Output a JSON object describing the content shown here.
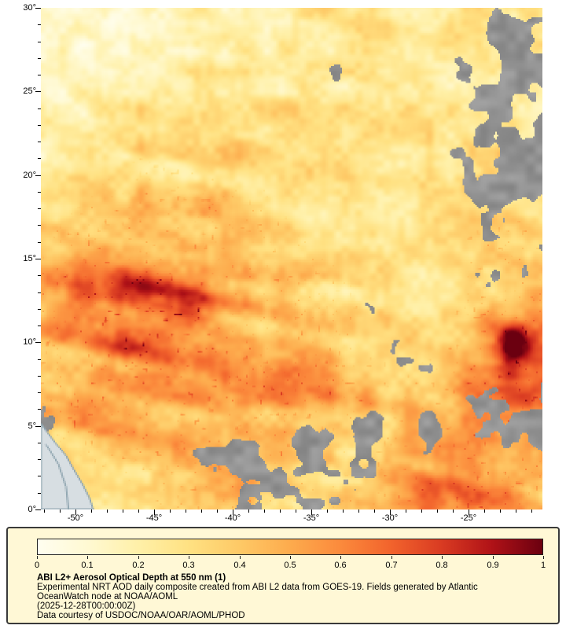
{
  "figure": {
    "background_color": "#FFFFFF"
  },
  "axes": {
    "lat_tick_labels": [
      "30°",
      "25°",
      "20°",
      "15°",
      "10°",
      "5°",
      "0°"
    ],
    "lon_tick_labels": [
      "-50°",
      "-45°",
      "-40°",
      "-35°",
      "-30°",
      "-25°"
    ]
  },
  "legend": {
    "background_color": "#FFF8D6",
    "border_color": "#3A3A3A",
    "colorbar_tick_labels": [
      "0",
      "0.1",
      "0.2",
      "0.3",
      "0.4",
      "0.5",
      "0.6",
      "0.7",
      "0.8",
      "0.9",
      "1"
    ],
    "title": "ABI L2+ Aerosol Optical Depth at 550 nm (1)",
    "description_line1": "Experimental NRT AOD daily composite created from ABI L2 data from GOES-19. Fields generated by Atlantic",
    "description_line2": "OceanWatch node at NOAA/AOML",
    "timestamp": "(2025-12-28T00:00:00Z)",
    "credit": "Data courtesy of USDOC/NOAA/OAR/AOML/PHOD"
  },
  "chart_data": {
    "type": "heatmap",
    "title": "ABI L2+ Aerosol Optical Depth at 550 nm (1)",
    "variable": "Aerosol Optical Depth at 550 nm",
    "lon_range": [
      -52.2,
      -20.3
    ],
    "lat_range": [
      0,
      30
    ],
    "lon_ticks": [
      -50,
      -45,
      -40,
      -35,
      -30,
      -25
    ],
    "lat_ticks": [
      0,
      5,
      10,
      15,
      20,
      25,
      30
    ],
    "colorbar": {
      "min": 0,
      "max": 1,
      "ticks": [
        0,
        0.1,
        0.2,
        0.3,
        0.4,
        0.5,
        0.6,
        0.7,
        0.8,
        0.9,
        1
      ]
    },
    "colormap": [
      {
        "value": 0.0,
        "color": "#FFFEF0"
      },
      {
        "value": 0.1,
        "color": "#FFF9D2"
      },
      {
        "value": 0.2,
        "color": "#FFF0A8"
      },
      {
        "value": 0.3,
        "color": "#FFE182"
      },
      {
        "value": 0.4,
        "color": "#FEC966"
      },
      {
        "value": 0.5,
        "color": "#FDAB4D"
      },
      {
        "value": 0.6,
        "color": "#FB8A3C"
      },
      {
        "value": 0.7,
        "color": "#F2632C"
      },
      {
        "value": 0.8,
        "color": "#D93B22"
      },
      {
        "value": 0.9,
        "color": "#B01217"
      },
      {
        "value": 1.0,
        "color": "#6B0010"
      }
    ],
    "cloud_color": "#9A9A9A",
    "land_color": "#D7DEE2",
    "coast_color": "#8FA5B0",
    "grid_order": "rows north(30N) to south(0N), cols west(-52.2) to east(-20.3)",
    "aod_grid": [
      [
        0.13,
        0.13,
        0.14,
        0.16,
        0.18,
        0.2,
        0.22,
        0.25,
        0.28,
        0.3,
        0.28,
        0.25,
        0.28,
        0.3,
        0.25,
        0.22
      ],
      [
        0.12,
        0.13,
        0.15,
        0.17,
        0.18,
        0.2,
        0.22,
        0.26,
        0.3,
        0.28,
        0.26,
        0.25,
        0.3,
        0.34,
        0.3,
        0.25
      ],
      [
        0.13,
        0.15,
        0.17,
        0.18,
        0.2,
        0.24,
        0.26,
        0.28,
        0.32,
        0.3,
        0.28,
        0.26,
        0.25,
        0.28,
        0.28,
        0.25
      ],
      [
        0.15,
        0.18,
        0.22,
        0.25,
        0.25,
        0.28,
        0.3,
        0.3,
        0.3,
        0.28,
        0.28,
        0.28,
        0.26,
        0.28,
        0.26,
        0.24
      ],
      [
        0.18,
        0.22,
        0.28,
        0.32,
        0.3,
        0.3,
        0.32,
        0.3,
        0.28,
        0.28,
        0.28,
        0.28,
        0.28,
        0.3,
        0.28,
        0.26
      ],
      [
        0.22,
        0.28,
        0.35,
        0.4,
        0.36,
        0.34,
        0.36,
        0.32,
        0.3,
        0.28,
        0.28,
        0.28,
        0.28,
        0.32,
        0.3,
        0.28
      ],
      [
        0.3,
        0.36,
        0.42,
        0.45,
        0.42,
        0.38,
        0.38,
        0.34,
        0.32,
        0.3,
        0.28,
        0.28,
        0.3,
        0.34,
        0.36,
        0.32
      ],
      [
        0.4,
        0.48,
        0.52,
        0.52,
        0.48,
        0.42,
        0.4,
        0.38,
        0.34,
        0.32,
        0.3,
        0.28,
        0.3,
        0.34,
        0.38,
        0.36
      ],
      [
        0.5,
        0.6,
        0.68,
        0.72,
        0.66,
        0.55,
        0.48,
        0.42,
        0.38,
        0.34,
        0.32,
        0.3,
        0.3,
        0.36,
        0.45,
        0.5
      ],
      [
        0.52,
        0.6,
        0.66,
        0.7,
        0.64,
        0.55,
        0.5,
        0.45,
        0.4,
        0.35,
        0.32,
        0.3,
        0.32,
        0.45,
        0.6,
        0.65
      ],
      [
        0.48,
        0.52,
        0.56,
        0.58,
        0.55,
        0.52,
        0.5,
        0.46,
        0.42,
        0.4,
        0.35,
        0.32,
        0.38,
        0.5,
        0.7,
        0.65
      ],
      [
        0.45,
        0.52,
        0.58,
        0.62,
        0.62,
        0.6,
        0.58,
        0.54,
        0.5,
        0.44,
        0.4,
        0.36,
        0.42,
        0.52,
        0.6,
        0.58
      ],
      [
        0.32,
        0.4,
        0.46,
        0.52,
        0.56,
        0.58,
        0.54,
        0.5,
        0.46,
        0.42,
        0.42,
        0.44,
        0.48,
        0.56,
        0.58,
        0.52
      ],
      [
        0.24,
        0.28,
        0.32,
        0.36,
        0.4,
        0.44,
        0.44,
        0.42,
        0.4,
        0.38,
        0.42,
        0.5,
        0.55,
        0.58,
        0.52,
        0.46
      ],
      [
        0.2,
        0.22,
        0.25,
        0.3,
        0.34,
        0.36,
        0.38,
        0.36,
        0.35,
        0.36,
        0.44,
        0.52,
        0.56,
        0.52,
        0.48,
        0.42
      ]
    ],
    "cloud_grid": [
      [
        0,
        0,
        0,
        0,
        0,
        0.1,
        0.15,
        0.25,
        0.2,
        0.1,
        0.15,
        0.1,
        0.1,
        0.3,
        0.55,
        0.35
      ],
      [
        0,
        0,
        0,
        0,
        0,
        0.05,
        0.1,
        0.3,
        0.25,
        0.1,
        0.2,
        0.15,
        0.1,
        0.35,
        0.6,
        0.45
      ],
      [
        0,
        0,
        0,
        0,
        0.05,
        0.1,
        0.1,
        0.15,
        0.35,
        0.3,
        0.15,
        0.1,
        0.2,
        0.5,
        0.55,
        0.4
      ],
      [
        0,
        0,
        0,
        0,
        0.05,
        0.1,
        0.1,
        0.2,
        0.3,
        0.2,
        0.1,
        0.1,
        0.15,
        0.45,
        0.6,
        0.5
      ],
      [
        0,
        0,
        0,
        0,
        0,
        0.05,
        0.1,
        0.15,
        0.2,
        0.15,
        0.1,
        0.1,
        0.2,
        0.5,
        0.55,
        0.45
      ],
      [
        0,
        0,
        0,
        0,
        0,
        0.05,
        0.1,
        0.2,
        0.35,
        0.3,
        0.2,
        0.1,
        0.15,
        0.4,
        0.5,
        0.4
      ],
      [
        0,
        0,
        0,
        0,
        0.05,
        0.1,
        0.15,
        0.3,
        0.35,
        0.25,
        0.15,
        0.1,
        0.1,
        0.35,
        0.45,
        0.35
      ],
      [
        0,
        0,
        0,
        0,
        0.1,
        0.15,
        0.25,
        0.35,
        0.3,
        0.2,
        0.15,
        0.1,
        0.1,
        0.3,
        0.4,
        0.45
      ],
      [
        0,
        0,
        0,
        0,
        0,
        0.1,
        0.2,
        0.3,
        0.25,
        0.2,
        0.2,
        0.15,
        0.1,
        0.25,
        0.35,
        0.4
      ],
      [
        0,
        0,
        0,
        0,
        0,
        0.05,
        0.15,
        0.25,
        0.3,
        0.3,
        0.25,
        0.2,
        0.25,
        0.3,
        0.15,
        0.3
      ],
      [
        0.15,
        0.1,
        0,
        0,
        0,
        0.05,
        0.1,
        0.15,
        0.2,
        0.25,
        0.3,
        0.35,
        0.4,
        0.25,
        0.1,
        0.3
      ],
      [
        0.4,
        0.3,
        0.1,
        0,
        0,
        0.05,
        0.1,
        0.1,
        0.15,
        0.25,
        0.3,
        0.35,
        0.4,
        0.45,
        0.4,
        0.45
      ],
      [
        0.3,
        0.25,
        0.2,
        0.15,
        0.2,
        0.4,
        0.5,
        0.55,
        0.6,
        0.55,
        0.5,
        0.45,
        0.4,
        0.5,
        0.45,
        0.4
      ],
      [
        0.2,
        0.3,
        0.35,
        0.3,
        0.25,
        0.45,
        0.55,
        0.6,
        0.55,
        0.5,
        0.4,
        0.3,
        0.25,
        0.3,
        0.35,
        0.3
      ],
      [
        0.15,
        0.25,
        0.3,
        0.25,
        0.2,
        0.3,
        0.4,
        0.45,
        0.4,
        0.35,
        0.25,
        0.2,
        0.2,
        0.25,
        0.3,
        0.25
      ]
    ],
    "hotspots": [
      {
        "lon": -42.6,
        "lat": 11.9,
        "rx": 1.7,
        "ry": 1.1,
        "amp": 0.3
      },
      {
        "lon": -45.5,
        "lat": 13.3,
        "rx": 2.6,
        "ry": 1.6,
        "amp": 0.1
      },
      {
        "lon": -22.1,
        "lat": 9.6,
        "rx": 1.25,
        "ry": 0.95,
        "amp": 0.55
      },
      {
        "lon": -36.0,
        "lat": 6.9,
        "rx": 4.5,
        "ry": 1.1,
        "amp": 0.08
      },
      {
        "lon": -27.0,
        "lat": 2.6,
        "rx": 3.0,
        "ry": 1.8,
        "amp": 0.08
      }
    ],
    "land_polygon": [
      [
        0.0,
        0.828
      ],
      [
        0.01,
        0.842
      ],
      [
        0.028,
        0.866
      ],
      [
        0.05,
        0.893
      ],
      [
        0.064,
        0.918
      ],
      [
        0.083,
        0.95
      ],
      [
        0.097,
        0.978
      ],
      [
        0.104,
        1.0
      ],
      [
        0.0,
        1.0
      ]
    ],
    "river_line": [
      [
        0.01,
        0.87
      ],
      [
        0.035,
        0.91
      ],
      [
        0.05,
        0.955
      ],
      [
        0.055,
        1.0
      ]
    ]
  }
}
